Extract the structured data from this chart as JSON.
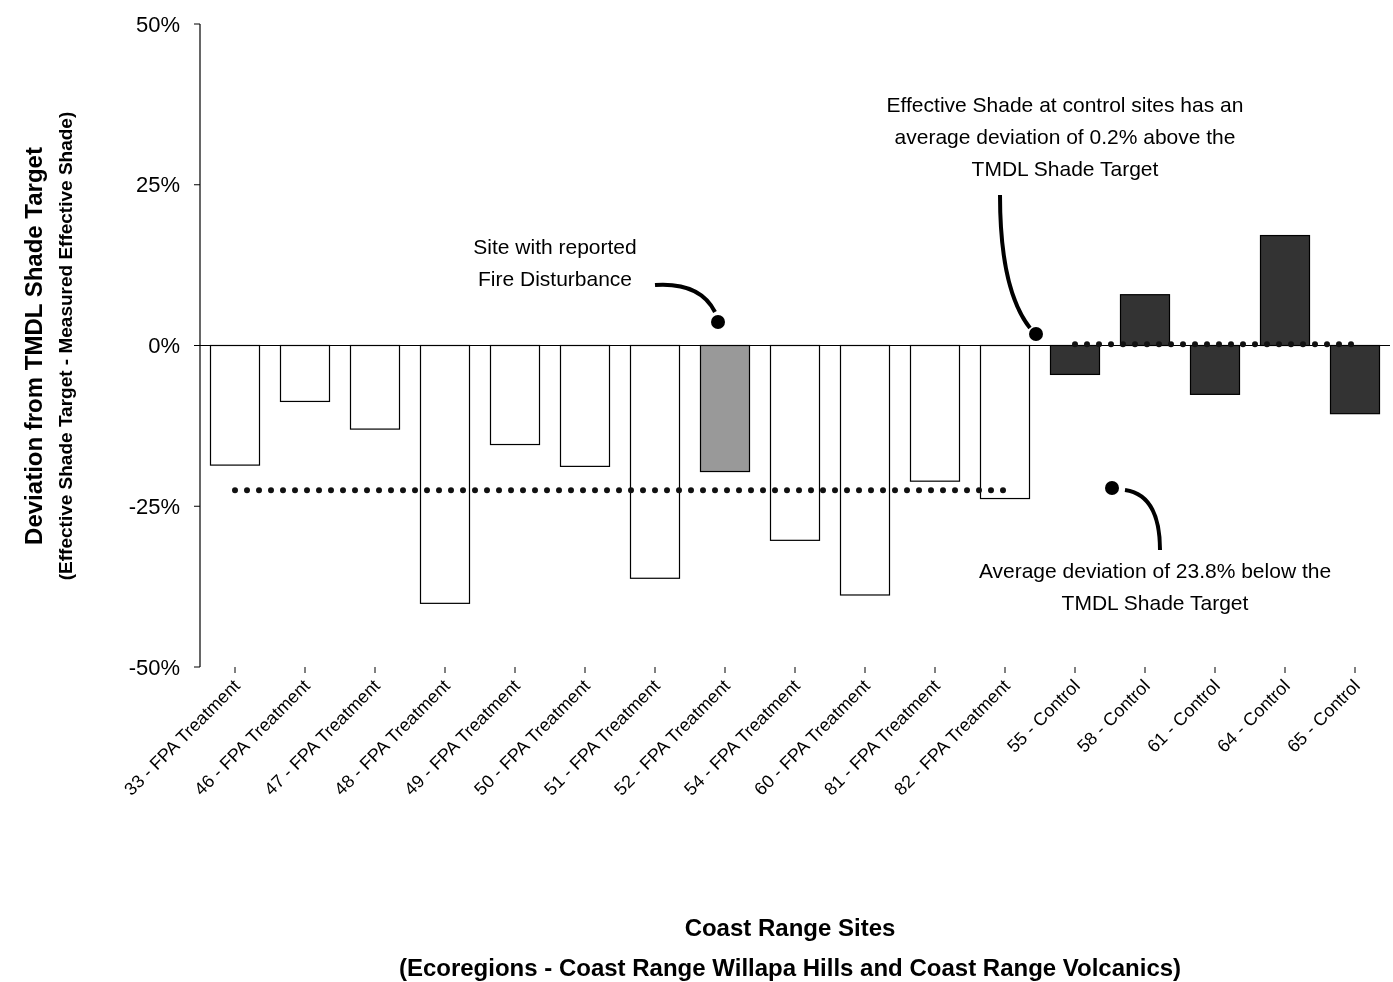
{
  "chart_data": {
    "type": "bar",
    "xlabel": "Coast Range Sites\n(Ecoregions - Coast Range Willapa Hills and Coast Range Volcanics)",
    "ylabel": "Deviation from TMDL Shade Target",
    "y2label": "(Effective Shade Target - Measured Effective Shade)",
    "categories": [
      "33 - FPA Treatment",
      "46 - FPA Treatment",
      "47 - FPA Treatment",
      "48 - FPA Treatment",
      "49 - FPA Treatment",
      "50 - FPA Treatment",
      "51 - FPA Treatment",
      "52 - FPA Treatment",
      "54 - FPA Treatment",
      "60 - FPA Treatment",
      "81 - FPA Treatment",
      "82 - FPA Treatment",
      "55 - Control",
      "58 - Control",
      "61 - Control",
      "64 - Control",
      "65 - Control"
    ],
    "series": [
      {
        "values": [
          -18.6,
          -8.7,
          -13.0,
          -40.1,
          -15.4,
          -18.8,
          -36.2,
          -19.6,
          -30.3,
          -38.8,
          -21.1,
          -23.8,
          -4.5,
          7.9,
          -7.6,
          17.1,
          -10.6
        ],
        "colors": [
          "#ffffff",
          "#ffffff",
          "#ffffff",
          "#ffffff",
          "#ffffff",
          "#ffffff",
          "#ffffff",
          "#999999",
          "#ffffff",
          "#ffffff",
          "#ffffff",
          "#ffffff",
          "#333333",
          "#333333",
          "#333333",
          "#333333",
          "#333333"
        ]
      },
      {
        "type": "line",
        "color": "#111111",
        "line_style": "dotted",
        "values": [
          -22.5,
          -22.5,
          -22.5,
          -22.5,
          -22.5,
          -22.5,
          -22.5,
          -22.5,
          -22.5,
          -22.5,
          -22.5,
          -22.5,
          null,
          null,
          null,
          null,
          null
        ]
      },
      {
        "type": "line",
        "color": "#111111",
        "line_style": "dotted",
        "values": [
          null,
          null,
          null,
          null,
          null,
          null,
          null,
          null,
          null,
          null,
          null,
          null,
          0.2,
          0.2,
          0.2,
          0.2,
          0.2
        ]
      }
    ],
    "ylim": [
      -50,
      50
    ],
    "yticks": [
      {
        "value": -50,
        "label": "-50%"
      },
      {
        "value": -25,
        "label": "-25%"
      },
      {
        "value": 0,
        "label": "0%"
      },
      {
        "value": 25,
        "label": "25%"
      },
      {
        "value": 50,
        "label": "50%"
      }
    ],
    "annotations": [
      "Site with reported\nFire Disturbance",
      "Effective Shade at control sites has an\naverage deviation of 0.2% above the\nTMDL Shade Target",
      "Average deviation of 23.8% below the\nTMDL Shade Target"
    ]
  }
}
